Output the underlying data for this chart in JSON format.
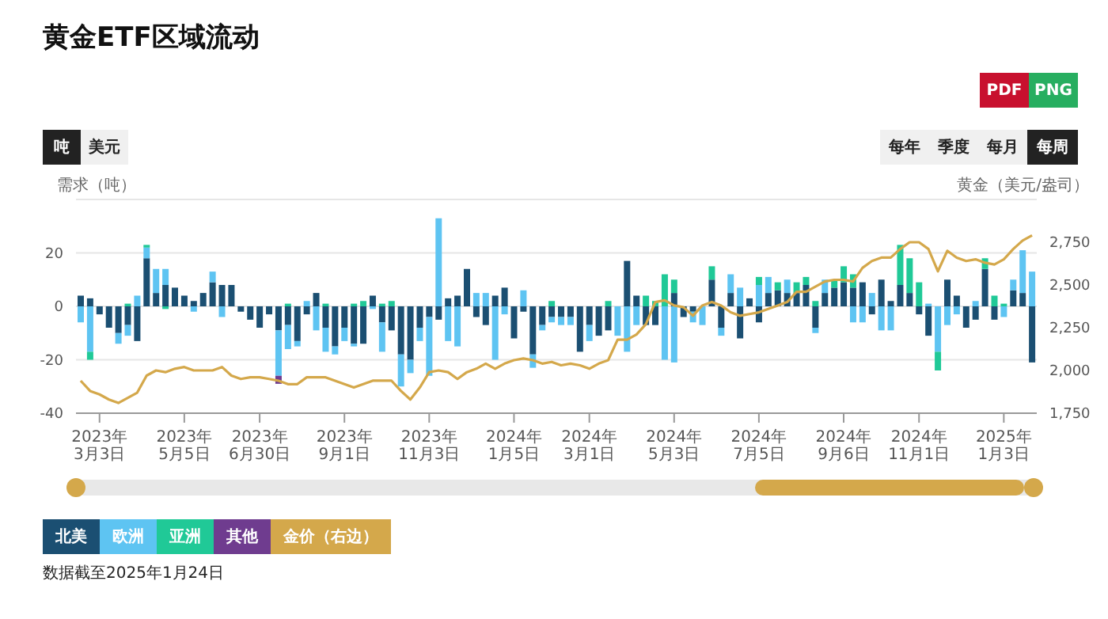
{
  "chart_data": {
    "type": "bar",
    "title": "黄金ETF区域流动",
    "ylabel": "需求（吨）",
    "y2label": "黄金（美元/盎司）",
    "stacked": true,
    "grid": "y",
    "legend": "bottom left",
    "marker": "none",
    "categories": [
      null,
      null,
      "2023年3月3日",
      null,
      null,
      null,
      null,
      null,
      null,
      null,
      null,
      "2023年5月5日",
      null,
      null,
      null,
      null,
      null,
      null,
      null,
      "2023年6月30日",
      null,
      null,
      null,
      null,
      null,
      null,
      null,
      null,
      "2023年9月1日",
      null,
      null,
      null,
      null,
      null,
      null,
      null,
      null,
      "2023年11月3日",
      null,
      null,
      null,
      null,
      null,
      null,
      null,
      null,
      "2024年1月5日",
      null,
      null,
      null,
      null,
      null,
      null,
      null,
      "2024年3月1日",
      null,
      null,
      null,
      null,
      null,
      null,
      null,
      null,
      "2024年5月3日",
      null,
      null,
      null,
      null,
      null,
      null,
      null,
      null,
      "2024年7月5日",
      null,
      null,
      null,
      null,
      null,
      null,
      null,
      null,
      "2024年9月6日",
      null,
      null,
      null,
      null,
      null,
      null,
      null,
      "2024年11月1日",
      null,
      null,
      null,
      null,
      null,
      null,
      null,
      null,
      "2025年1月3日",
      null,
      null,
      null
    ],
    "ylim": [
      -40,
      40
    ],
    "yticks": [
      -40,
      -20,
      0,
      20,
      {
        "value": 40,
        "label": null
      }
    ],
    "y2lim": [
      1750,
      3000
    ],
    "y2ticks": [
      {
        "value": 1750,
        "label": "1,750"
      },
      {
        "value": 2000,
        "label": "2,000"
      },
      {
        "value": 2250,
        "label": "2,250"
      },
      {
        "value": 2500,
        "label": "2,500"
      },
      {
        "value": 2750,
        "label": "2,750"
      },
      {
        "value": 3000,
        "label": null
      }
    ],
    "series": [
      {
        "name": "北美",
        "color": "#1b4f72",
        "values": [
          4,
          3,
          -3,
          -8,
          -10,
          -7,
          -13,
          18,
          5,
          8,
          7,
          4,
          2,
          5,
          9,
          8,
          8,
          -2,
          -5,
          -8,
          -3,
          -9,
          -7,
          -13,
          -3,
          5,
          -8,
          -15,
          -8,
          -14,
          -14,
          4,
          -6,
          -9,
          -18,
          -20,
          -8,
          -4,
          -5,
          3,
          4,
          14,
          -4,
          -7,
          4,
          7,
          -12,
          -2,
          -18,
          -7,
          -4,
          -4,
          -4,
          -17,
          -7,
          -11,
          -9,
          null,
          17,
          4,
          -7,
          -7,
          null,
          5,
          -4,
          -2,
          null,
          10,
          -8,
          5,
          -12,
          3,
          -6,
          5,
          6,
          5,
          5,
          8,
          -8,
          5,
          7,
          9,
          7,
          9,
          -3,
          10,
          2,
          8,
          5,
          -3,
          -11,
          null,
          10,
          4,
          -8,
          -5,
          14,
          -5,
          null,
          6,
          5,
          -21
        ]
      },
      {
        "name": "欧洲",
        "color": "#5ec4f2",
        "values": [
          -6,
          -17,
          null,
          null,
          -4,
          -4,
          4,
          4,
          9,
          6,
          null,
          null,
          -2,
          null,
          4,
          -4,
          null,
          null,
          null,
          null,
          null,
          -17,
          -9,
          -2,
          2,
          -9,
          -9,
          -3,
          -5,
          -1,
          null,
          -1,
          -11,
          null,
          -12,
          -5,
          -5,
          -22,
          33,
          -13,
          -15,
          null,
          5,
          5,
          -20,
          -3,
          null,
          6,
          -5,
          -2,
          -2,
          -3,
          -3,
          null,
          -6,
          null,
          null,
          -11,
          -17,
          -7,
          null,
          null,
          -20,
          -21,
          null,
          -4,
          -7,
          null,
          -3,
          7,
          7,
          null,
          8,
          6,
          null,
          5,
          null,
          null,
          -2,
          5,
          null,
          null,
          -6,
          -6,
          5,
          -9,
          -9,
          null,
          null,
          null,
          1,
          -17,
          -7,
          -3,
          null,
          2,
          null,
          null,
          -4,
          4,
          16,
          13
        ]
      },
      {
        "name": "亚洲",
        "color": "#20c997",
        "values": [
          null,
          -3,
          null,
          null,
          null,
          1,
          null,
          1,
          null,
          -1,
          null,
          null,
          null,
          null,
          null,
          null,
          null,
          null,
          null,
          null,
          null,
          null,
          1,
          null,
          null,
          null,
          1,
          null,
          null,
          1,
          2,
          null,
          1,
          2,
          null,
          null,
          null,
          null,
          null,
          null,
          null,
          null,
          null,
          null,
          null,
          null,
          null,
          null,
          null,
          null,
          2,
          null,
          null,
          null,
          null,
          null,
          2,
          null,
          null,
          null,
          4,
          2,
          12,
          5,
          null,
          null,
          null,
          5,
          null,
          null,
          null,
          null,
          3,
          null,
          3,
          null,
          4,
          3,
          2,
          null,
          3,
          6,
          5,
          null,
          null,
          null,
          null,
          15,
          13,
          9,
          null,
          -7,
          null,
          null,
          null,
          null,
          4,
          4,
          1,
          null,
          null,
          null
        ]
      },
      {
        "name": "其他",
        "color": "#6f3c8f",
        "values": [
          null,
          null,
          null,
          null,
          null,
          null,
          null,
          null,
          null,
          null,
          null,
          null,
          null,
          null,
          null,
          null,
          null,
          null,
          null,
          null,
          null,
          -3,
          null,
          null,
          null,
          null,
          null,
          null,
          null,
          null,
          null,
          null,
          null,
          null,
          null,
          null,
          null,
          null,
          null,
          null,
          null,
          null,
          null,
          null,
          null,
          null,
          null,
          null,
          null,
          null,
          null,
          null,
          null,
          null,
          null,
          null,
          null,
          null,
          null,
          null,
          null,
          null,
          null,
          null,
          null,
          null,
          null,
          null,
          null,
          null,
          null,
          null,
          null,
          null,
          null,
          null,
          null,
          null,
          null,
          null,
          null,
          null,
          null,
          null,
          null,
          null,
          null,
          null,
          null,
          null,
          null,
          null,
          null,
          null,
          null,
          null,
          null,
          null,
          null,
          null,
          null,
          null
        ]
      },
      {
        "name": "金价（右边）",
        "type": "line",
        "axis": "y2",
        "color": "#d4a84b",
        "values": [
          1940,
          1880,
          1860,
          1830,
          1810,
          1840,
          1870,
          1970,
          2000,
          1990,
          2010,
          2020,
          2000,
          2000,
          2000,
          2020,
          1970,
          1950,
          1960,
          1960,
          1950,
          1940,
          1920,
          1920,
          1960,
          1960,
          1960,
          1940,
          1920,
          1900,
          1920,
          1940,
          1940,
          1940,
          1880,
          1830,
          1900,
          1990,
          2000,
          1990,
          1950,
          1990,
          2010,
          2040,
          2010,
          2040,
          2060,
          2070,
          2060,
          2040,
          2050,
          2030,
          2040,
          2030,
          2010,
          2040,
          2060,
          2180,
          2180,
          2210,
          2270,
          2400,
          2410,
          2380,
          2370,
          2320,
          2380,
          2400,
          2380,
          2340,
          2320,
          2330,
          2340,
          2360,
          2380,
          2400,
          2460,
          2460,
          2490,
          2520,
          2530,
          2530,
          2520,
          2600,
          2640,
          2660,
          2660,
          2710,
          2750,
          2750,
          2710,
          2580,
          2700,
          2660,
          2640,
          2650,
          2630,
          2620,
          2650,
          2710,
          2760,
          2790
        ]
      }
    ],
    "annotations": [
      "吨",
      "美元",
      "每年",
      "季度",
      "每月",
      "每周",
      "PDF",
      "PNG",
      "数据截至2025年1月24日"
    ]
  }
}
